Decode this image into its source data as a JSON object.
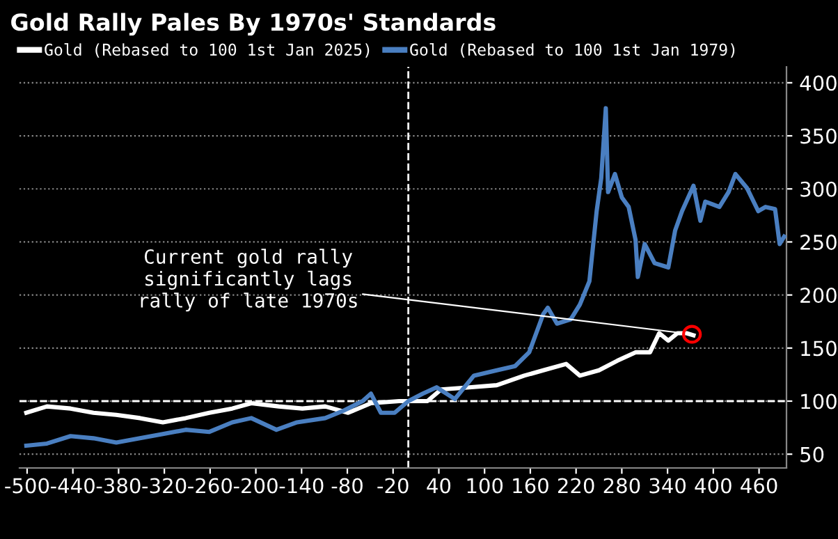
{
  "chart_data": {
    "type": "line",
    "title": "Gold Rally Pales By 1970s' Standards",
    "series": [
      {
        "name": "Gold (Rebased to 100 1st Jan 2025)",
        "color": "#ffffff",
        "x": [
          -501,
          -474,
          -443,
          -413,
          -383,
          -352,
          -322,
          -292,
          -261,
          -231,
          -206,
          -170,
          -139,
          -109,
          -79,
          -49,
          -12,
          -6,
          25,
          43,
          80,
          116,
          152,
          177,
          207,
          225,
          250,
          274,
          298,
          317,
          329,
          341,
          353,
          365,
          374
        ],
        "values": [
          89,
          95,
          93,
          89,
          87,
          84,
          80,
          84,
          89,
          93,
          98,
          95,
          93,
          95,
          89,
          98,
          100,
          100,
          100,
          111,
          113,
          115,
          124,
          129,
          135,
          124,
          129,
          138,
          146,
          146,
          164,
          157,
          164,
          164,
          162
        ]
      },
      {
        "name": "Gold (Rebased to 100 1st Jan 1979)",
        "color": "#4a7fc1",
        "x": [
          -501,
          -474,
          -443,
          -413,
          -383,
          -352,
          -322,
          -292,
          -261,
          -231,
          -206,
          -173,
          -146,
          -109,
          -85,
          -60,
          -49,
          -36,
          -18,
          0,
          19,
          37,
          61,
          86,
          116,
          140,
          158.5,
          177,
          183,
          195,
          213,
          225,
          237.5,
          247,
          253,
          259,
          262,
          271,
          280,
          289,
          298,
          301,
          310,
          323,
          341,
          350,
          359,
          374,
          383,
          389.5,
          408,
          420,
          429,
          444,
          459,
          468.5,
          481,
          487,
          493
        ],
        "values": [
          58,
          60,
          67,
          65,
          61,
          65,
          69,
          73,
          71,
          80,
          84,
          73,
          80,
          84,
          91,
          100,
          107,
          89,
          89,
          100,
          107,
          113,
          102,
          124,
          129,
          133,
          146,
          182,
          188,
          173,
          177,
          191,
          213,
          279,
          310,
          376,
          297,
          314,
          292,
          283,
          252,
          217,
          248,
          230,
          226,
          261,
          279,
          303,
          270,
          288,
          283,
          297,
          314,
          301,
          279,
          283,
          281,
          248,
          255
        ]
      }
    ],
    "xlim": [
      -510,
      496
    ],
    "xticks": [
      -500,
      -440,
      -380,
      -320,
      -260,
      -200,
      -140,
      -80,
      -20,
      40,
      100,
      160,
      220,
      280,
      340,
      400,
      460
    ],
    "ylim": [
      37,
      415
    ],
    "yticks": [
      50,
      100,
      150,
      200,
      250,
      300,
      350,
      400
    ],
    "grid": "y",
    "legend": "top",
    "line_style": "solid",
    "marker": "none",
    "ref_lines": [
      {
        "axis": "y",
        "value": 100,
        "color": "#ffffff",
        "line_style": "dashed"
      },
      {
        "axis": "x",
        "value": 0,
        "color": "#ffffff",
        "line_style": "dashed"
      }
    ],
    "annotations": [
      {
        "text": "Current gold rally\nsignificantly lags\nrally of late 1970s",
        "x": 372,
        "y": 163
      }
    ]
  }
}
